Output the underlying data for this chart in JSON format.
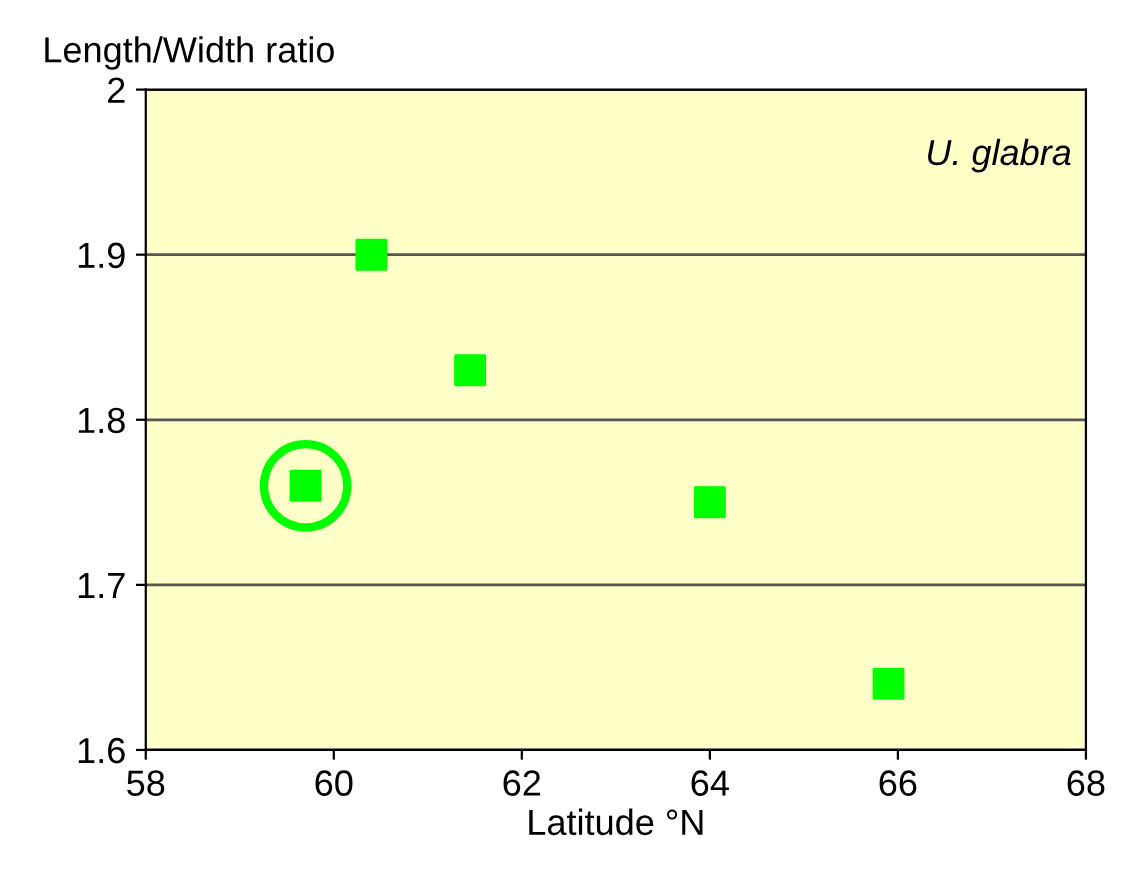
{
  "chart_data": {
    "type": "scatter",
    "xlabel": "Latitude °N",
    "ylabel": "Length/Width ratio",
    "annotations": [
      "U. glabra"
    ],
    "series": [
      {
        "color": "#00ff00",
        "marker": "square",
        "x": [
          60.4,
          61.45,
          59.7,
          64.0,
          65.9
        ],
        "values": [
          1.9,
          1.83,
          1.76,
          1.75,
          1.64
        ]
      },
      {
        "color": "#00ff00",
        "x": [
          59.7
        ],
        "values": [
          1.76
        ]
      }
    ],
    "xlim": [
      58,
      68
    ],
    "xticks": [
      58,
      60,
      62,
      64,
      66,
      68
    ],
    "ylim": [
      1.6,
      2
    ],
    "yticks": [
      1.6,
      1.7,
      1.8,
      1.9,
      2
    ],
    "grid": "y",
    "legend": false
  }
}
